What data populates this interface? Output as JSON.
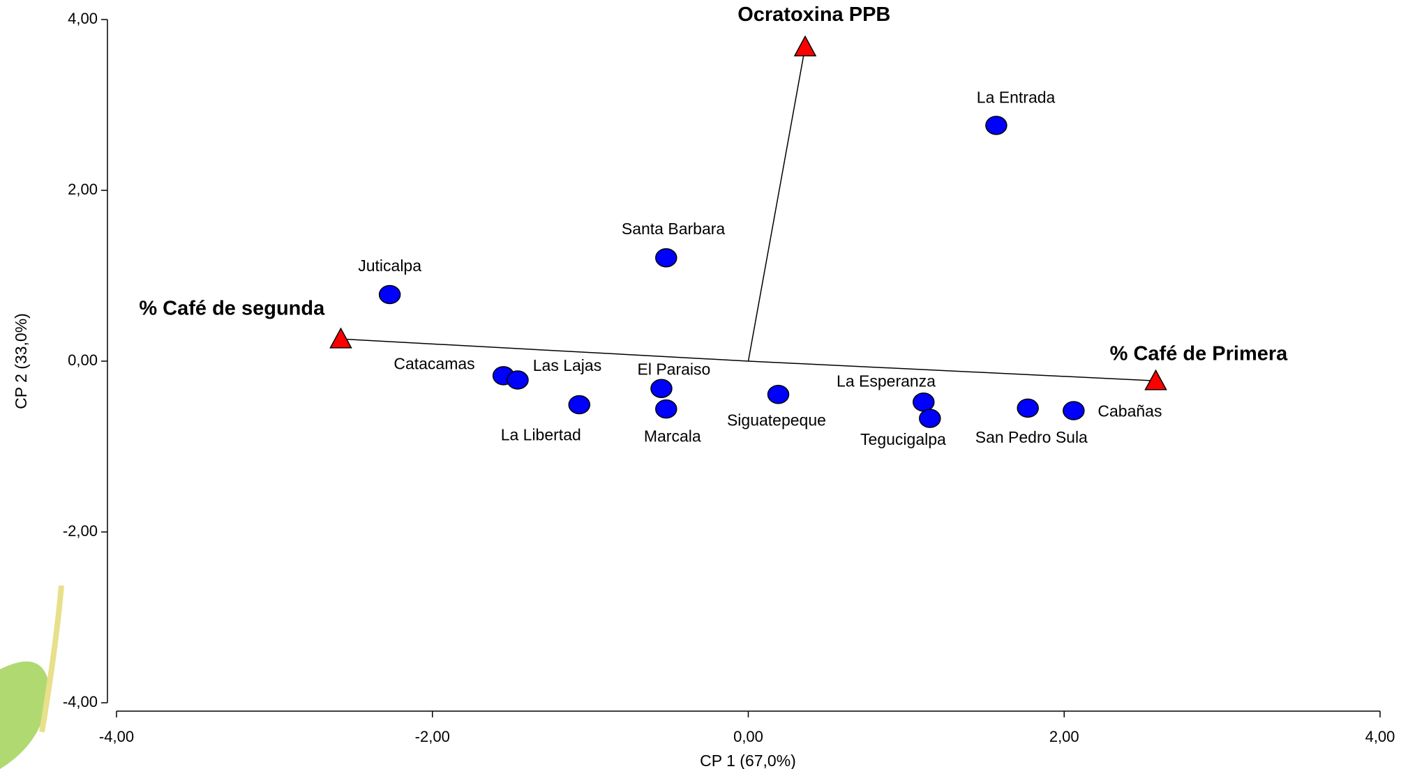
{
  "chart_data": {
    "type": "biplot",
    "x_label": "CP 1 (67,0%)",
    "y_label": "CP 2 (33,0%)",
    "xlim": [
      -4,
      4
    ],
    "ylim": [
      -4,
      4
    ],
    "xticks": [
      {
        "value": -4,
        "label": "-4,00"
      },
      {
        "value": -2,
        "label": "-2,00"
      },
      {
        "value": 0,
        "label": "0,00"
      },
      {
        "value": 2,
        "label": "2,00"
      },
      {
        "value": 4,
        "label": "4,00"
      }
    ],
    "yticks": [
      {
        "value": -4,
        "label": "-4,00"
      },
      {
        "value": -2,
        "label": "-2,00"
      },
      {
        "value": 0,
        "label": "0,00"
      },
      {
        "value": 2,
        "label": "2,00"
      },
      {
        "value": 4,
        "label": "4,00"
      }
    ],
    "points": {
      "color": "#0000ff",
      "labels": [
        "La Entrada",
        "Santa Barbara",
        "Juticalpa",
        "Catacamas",
        "Las Lajas",
        "La Libertad",
        "El Paraiso",
        "Marcala",
        "Siguatepeque",
        "La Esperanza",
        "Tegucigalpa",
        "San Pedro Sula",
        "Cabañas"
      ],
      "x": [
        1.57,
        -0.52,
        -2.27,
        -1.55,
        -1.46,
        -1.07,
        -0.55,
        -0.52,
        0.19,
        1.11,
        1.15,
        1.77,
        2.06
      ],
      "y": [
        2.76,
        1.21,
        0.78,
        -0.17,
        -0.22,
        -0.51,
        -0.32,
        -0.56,
        -0.39,
        -0.48,
        -0.67,
        -0.55,
        -0.58
      ]
    },
    "vectors": {
      "color": "#ff0000",
      "labels": [
        "Ocratoxina PPB",
        "% Café de segunda",
        "% Café de Primera"
      ],
      "x": [
        0.36,
        -2.58,
        2.58
      ],
      "y": [
        3.68,
        0.26,
        -0.23
      ]
    }
  }
}
